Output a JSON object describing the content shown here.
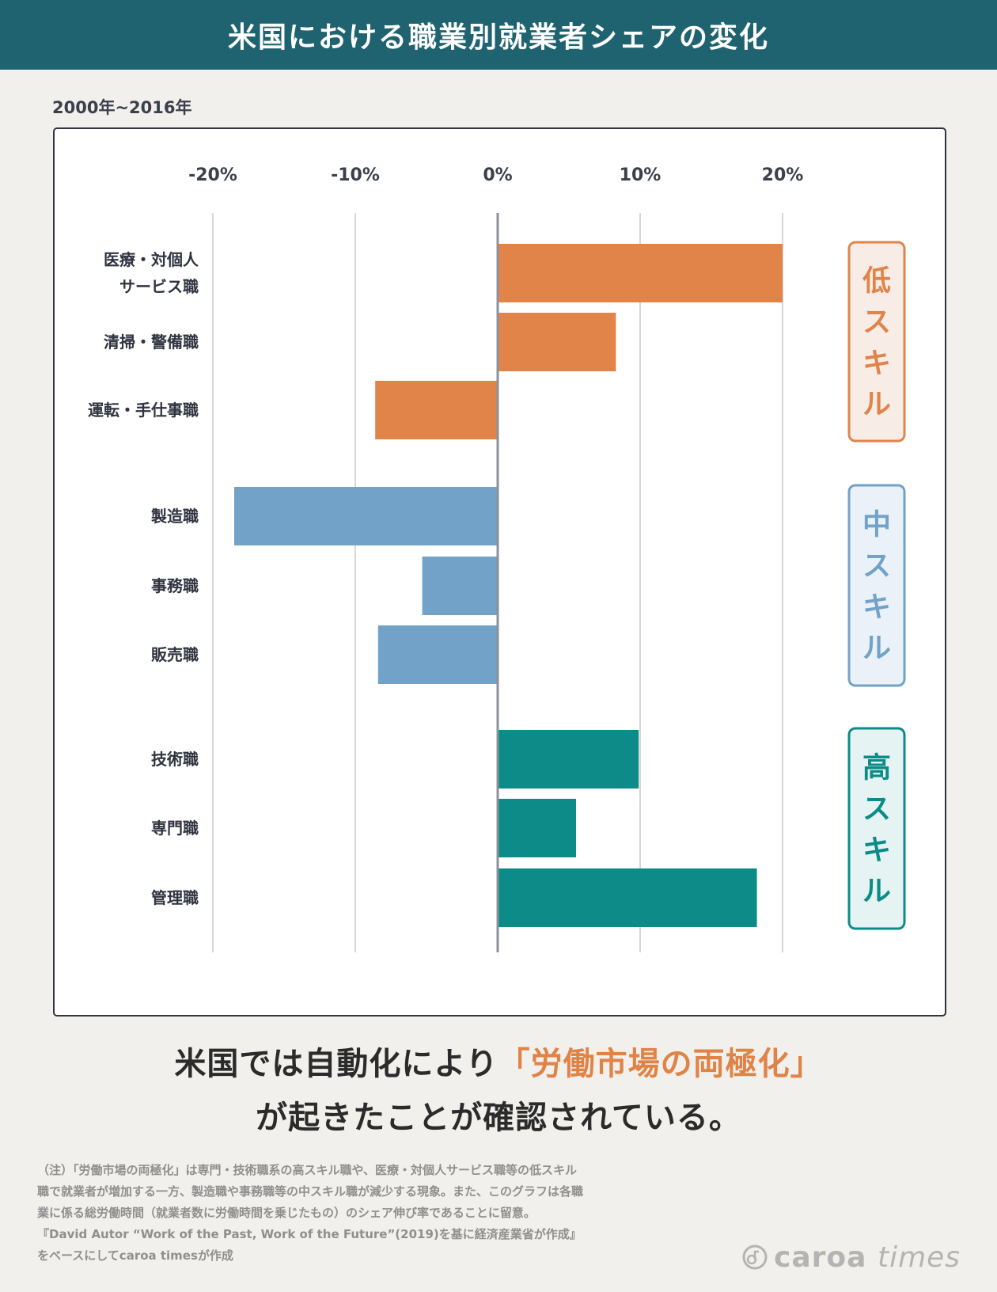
{
  "header": {
    "title": "米国における職業別就業者シェアの変化"
  },
  "period": "2000年~2016年",
  "chart_data": {
    "type": "bar",
    "orientation": "horizontal",
    "title": "米国における職業別就業者シェアの変化",
    "subtitle": "2000年~2016年",
    "xlim": [
      -20,
      20
    ],
    "ticks": [
      -20,
      -10,
      0,
      10,
      20
    ],
    "tick_labels": [
      "-20%",
      "-10%",
      "0%",
      "10%",
      "20%"
    ],
    "grid": true,
    "categories": [
      [
        "医療・対個人",
        "サービス職"
      ],
      [
        "清掃・警備職"
      ],
      [
        "運転・手仕事職"
      ],
      [
        "製造職"
      ],
      [
        "事務職"
      ],
      [
        "販売職"
      ],
      [
        "技術職"
      ],
      [
        "専門職"
      ],
      [
        "管理職"
      ]
    ],
    "values": [
      20.0,
      8.3,
      -8.6,
      -18.5,
      -5.3,
      -8.4,
      9.9,
      5.5,
      18.2
    ],
    "groups": [
      {
        "name": "低スキル",
        "chars": [
          "低",
          "ス",
          "キ",
          "ル"
        ],
        "start": 0,
        "end": 2,
        "color": "#e0844a",
        "fill": "#f8ede6"
      },
      {
        "name": "中スキル",
        "chars": [
          "中",
          "ス",
          "キ",
          "ル"
        ],
        "start": 3,
        "end": 5,
        "color": "#72a2c8",
        "fill": "#eaf1f8"
      },
      {
        "name": "高スキル",
        "chars": [
          "高",
          "ス",
          "キ",
          "ル"
        ],
        "start": 6,
        "end": 8,
        "color": "#0c8b88",
        "fill": "#e5f3f2"
      }
    ]
  },
  "headline": {
    "line1_pre": "米国では自動化により",
    "line1_highlight": "「労働市場の両極化」",
    "line2": "が起きたことが確認されている。"
  },
  "notes": [
    "（注）「労働市場の両極化」は専門・技術職系の高スキル職や、医療・対個人サービス職等の低スキル",
    "職で就業者が増加する一方、製造職や事務職等の中スキル職が減少する現象。また、このグラフは各職",
    "業に係る総労働時間（就業者数に労働時間を乗じたもの）のシェア伸び率であることに留意。",
    "『David Autor “Work of the Past, Work of the Future”(2019)を基に経済産業省が作成』",
    "をベースにしてcaroa timesが作成"
  ],
  "logo": {
    "brand": "caroa",
    "suffix": "times"
  },
  "colors": {
    "header": "#1f6370",
    "accent": "#e08347"
  }
}
